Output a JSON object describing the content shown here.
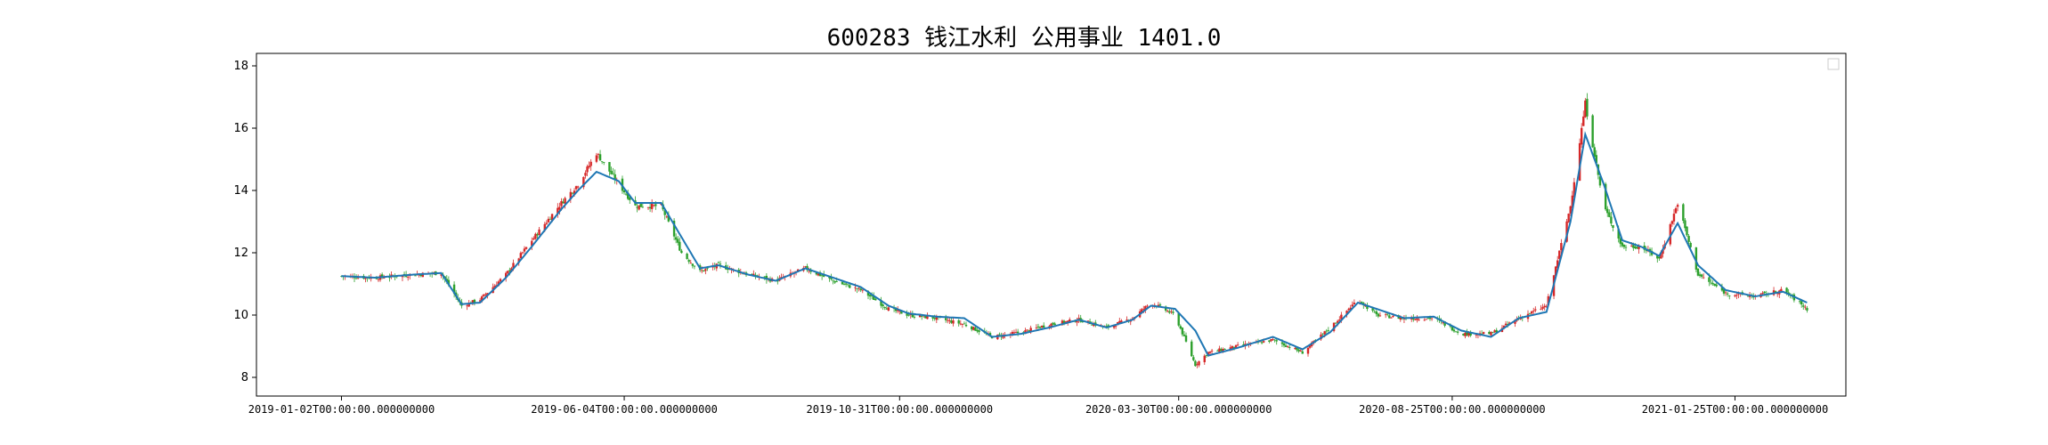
{
  "chart_data": {
    "type": "line",
    "title": "600283 钱江水利 公用事业 1401.0",
    "xlabel": "",
    "ylabel": "",
    "ylim": [
      7.4,
      18.4
    ],
    "y_ticks": [
      8,
      10,
      12,
      14,
      16,
      18
    ],
    "x_tick_labels": [
      "2019-01-02T00:00:00.000000000",
      "2019-06-04T00:00:00.000000000",
      "2019-10-31T00:00:00.000000000",
      "2020-03-30T00:00:00.000000000",
      "2020-08-25T00:00:00.000000000",
      "2021-01-25T00:00:00.000000000"
    ],
    "x_tick_dates": [
      "2019-01-02",
      "2019-06-04",
      "2019-10-31",
      "2020-03-30",
      "2020-08-25",
      "2021-01-25"
    ],
    "x_range": [
      "2018-11-17",
      "2021-03-26"
    ],
    "grid": false,
    "legend": "top-right (empty)",
    "series": [
      {
        "kind": "moving-average",
        "color": "#1f77b4",
        "points": [
          [
            "2019-01-02",
            11.25
          ],
          [
            "2019-01-20",
            11.2
          ],
          [
            "2019-02-10",
            11.3
          ],
          [
            "2019-02-25",
            11.35
          ],
          [
            "2019-03-08",
            10.35
          ],
          [
            "2019-03-18",
            10.4
          ],
          [
            "2019-04-01",
            11.2
          ],
          [
            "2019-04-15",
            12.2
          ],
          [
            "2019-05-01",
            13.4
          ],
          [
            "2019-05-10",
            14.0
          ],
          [
            "2019-05-20",
            14.6
          ],
          [
            "2019-06-01",
            14.3
          ],
          [
            "2019-06-10",
            13.6
          ],
          [
            "2019-06-24",
            13.6
          ],
          [
            "2019-07-05",
            12.5
          ],
          [
            "2019-07-15",
            11.5
          ],
          [
            "2019-07-25",
            11.6
          ],
          [
            "2019-08-10",
            11.3
          ],
          [
            "2019-08-25",
            11.1
          ],
          [
            "2019-09-10",
            11.5
          ],
          [
            "2019-09-25",
            11.2
          ],
          [
            "2019-10-10",
            10.9
          ],
          [
            "2019-10-25",
            10.3
          ],
          [
            "2019-11-05",
            10.05
          ],
          [
            "2019-11-20",
            9.95
          ],
          [
            "2019-12-05",
            9.9
          ],
          [
            "2019-12-20",
            9.3
          ],
          [
            "2020-01-05",
            9.4
          ],
          [
            "2020-01-20",
            9.6
          ],
          [
            "2020-02-05",
            9.85
          ],
          [
            "2020-02-20",
            9.6
          ],
          [
            "2020-03-05",
            9.85
          ],
          [
            "2020-03-15",
            10.3
          ],
          [
            "2020-03-28",
            10.2
          ],
          [
            "2020-04-08",
            9.5
          ],
          [
            "2020-04-15",
            8.7
          ],
          [
            "2020-05-01",
            8.95
          ],
          [
            "2020-05-20",
            9.3
          ],
          [
            "2020-06-05",
            8.9
          ],
          [
            "2020-06-20",
            9.45
          ],
          [
            "2020-07-05",
            10.4
          ],
          [
            "2020-07-15",
            10.2
          ],
          [
            "2020-07-30",
            9.9
          ],
          [
            "2020-08-15",
            9.95
          ],
          [
            "2020-08-30",
            9.5
          ],
          [
            "2020-09-15",
            9.3
          ],
          [
            "2020-09-30",
            9.9
          ],
          [
            "2020-10-15",
            10.1
          ],
          [
            "2020-10-28",
            13.0
          ],
          [
            "2020-11-05",
            15.8
          ],
          [
            "2020-11-15",
            14.2
          ],
          [
            "2020-11-25",
            12.4
          ],
          [
            "2020-12-05",
            12.2
          ],
          [
            "2020-12-15",
            11.9
          ],
          [
            "2020-12-25",
            12.95
          ],
          [
            "2021-01-05",
            11.6
          ],
          [
            "2021-01-20",
            10.8
          ],
          [
            "2021-02-05",
            10.6
          ],
          [
            "2021-02-20",
            10.75
          ],
          [
            "2021-03-05",
            10.4
          ]
        ]
      },
      {
        "kind": "candlestick",
        "up_color": "#d62728",
        "down_color": "#2ca02c",
        "anchors": [
          [
            "2019-01-02",
            11.25
          ],
          [
            "2019-01-20",
            11.2
          ],
          [
            "2019-02-10",
            11.3
          ],
          [
            "2019-02-25",
            11.35
          ],
          [
            "2019-03-08",
            10.3
          ],
          [
            "2019-03-18",
            10.5
          ],
          [
            "2019-04-01",
            11.3
          ],
          [
            "2019-04-15",
            12.4
          ],
          [
            "2019-05-01",
            13.6
          ],
          [
            "2019-05-10",
            14.2
          ],
          [
            "2019-05-20",
            15.2
          ],
          [
            "2019-06-01",
            14.2
          ],
          [
            "2019-06-10",
            13.5
          ],
          [
            "2019-06-24",
            13.5
          ],
          [
            "2019-07-05",
            12.0
          ],
          [
            "2019-07-15",
            11.4
          ],
          [
            "2019-07-25",
            11.6
          ],
          [
            "2019-08-10",
            11.3
          ],
          [
            "2019-08-25",
            11.1
          ],
          [
            "2019-09-10",
            11.5
          ],
          [
            "2019-09-25",
            11.1
          ],
          [
            "2019-10-10",
            10.8
          ],
          [
            "2019-10-25",
            10.2
          ],
          [
            "2019-11-05",
            10.0
          ],
          [
            "2019-11-20",
            9.9
          ],
          [
            "2019-12-05",
            9.7
          ],
          [
            "2019-12-20",
            9.3
          ],
          [
            "2020-01-05",
            9.45
          ],
          [
            "2020-01-20",
            9.7
          ],
          [
            "2020-02-05",
            9.85
          ],
          [
            "2020-02-20",
            9.6
          ],
          [
            "2020-03-05",
            9.9
          ],
          [
            "2020-03-15",
            10.4
          ],
          [
            "2020-03-28",
            10.0
          ],
          [
            "2020-04-08",
            8.4
          ],
          [
            "2020-04-15",
            8.8
          ],
          [
            "2020-05-01",
            9.0
          ],
          [
            "2020-05-20",
            9.2
          ],
          [
            "2020-06-05",
            8.8
          ],
          [
            "2020-06-20",
            9.6
          ],
          [
            "2020-07-05",
            10.5
          ],
          [
            "2020-07-15",
            10.0
          ],
          [
            "2020-07-30",
            9.9
          ],
          [
            "2020-08-15",
            9.9
          ],
          [
            "2020-08-30",
            9.4
          ],
          [
            "2020-09-15",
            9.4
          ],
          [
            "2020-09-30",
            9.9
          ],
          [
            "2020-10-15",
            10.3
          ],
          [
            "2020-10-28",
            13.5
          ],
          [
            "2020-11-05",
            16.8
          ],
          [
            "2020-11-15",
            13.5
          ],
          [
            "2020-11-25",
            12.2
          ],
          [
            "2020-12-05",
            12.2
          ],
          [
            "2020-12-15",
            11.8
          ],
          [
            "2020-12-25",
            13.6
          ],
          [
            "2021-01-05",
            11.3
          ],
          [
            "2021-01-20",
            10.7
          ],
          [
            "2021-02-05",
            10.6
          ],
          [
            "2021-02-20",
            10.8
          ],
          [
            "2021-03-05",
            10.2
          ]
        ]
      }
    ]
  }
}
